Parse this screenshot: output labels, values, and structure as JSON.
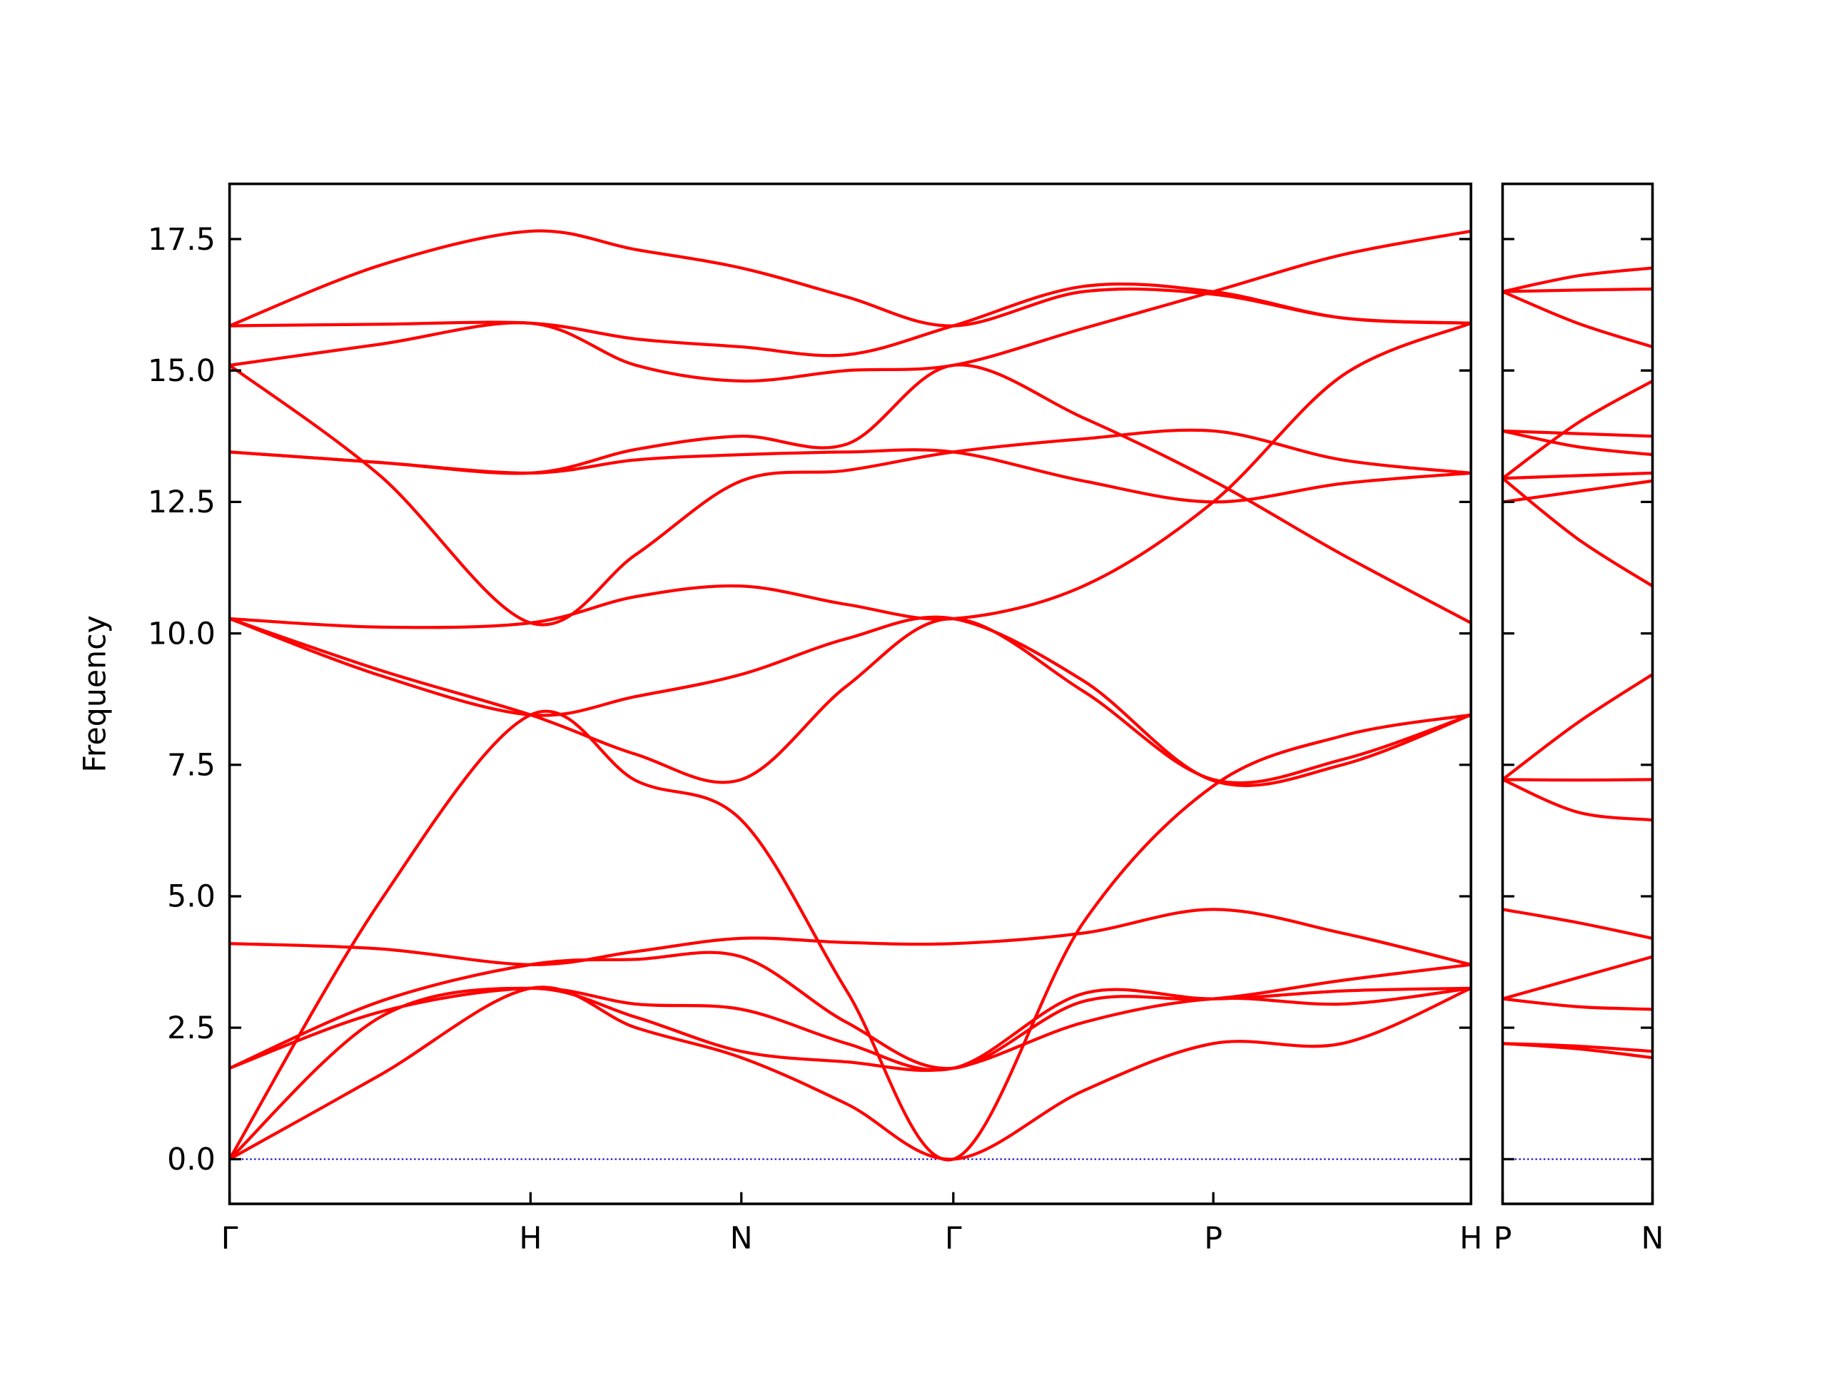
{
  "chart_data": [
    {
      "type": "line",
      "y_label": "Frequency",
      "x": [
        0,
        1.285,
        2.57,
        3.47,
        4.37,
        5.27,
        6.18,
        7.29,
        8.4,
        9.5,
        10.6
      ],
      "xlim": [
        0,
        10.6
      ],
      "xticks": [
        {
          "value": 0,
          "label": "Γ"
        },
        {
          "value": 2.57,
          "label": "H"
        },
        {
          "value": 4.37,
          "label": "N"
        },
        {
          "value": 6.18,
          "label": "Γ"
        },
        {
          "value": 8.4,
          "label": "P"
        },
        {
          "value": 10.6,
          "label": "H"
        }
      ],
      "ylim": [
        -0.85,
        18.55
      ],
      "yticks": [
        {
          "value": 0,
          "label": "0.0"
        },
        2.5,
        {
          "value": 5,
          "label": "5.0"
        },
        7.5,
        {
          "value": 10,
          "label": "10.0"
        },
        12.5,
        {
          "value": 15,
          "label": "15.0"
        },
        17.5
      ],
      "reference_line": {
        "y": 0,
        "color": "#0000cc"
      },
      "series": [
        {
          "color": "#ff0000",
          "values": [
            0,
            1.6,
            3.25,
            2.5,
            1.93,
            1.05,
            0,
            1.3,
            2.2,
            2.2,
            3.25
          ]
        },
        {
          "color": "#ff0000",
          "values": [
            0,
            2.7,
            3.25,
            2.7,
            2.05,
            1.85,
            1.73,
            2.6,
            3.05,
            2.95,
            3.25
          ]
        },
        {
          "color": "#ff0000",
          "values": [
            1.73,
            2.8,
            3.25,
            2.95,
            2.85,
            2.2,
            1.73,
            3.15,
            3.05,
            3.2,
            3.25
          ]
        },
        {
          "color": "#ff0000",
          "values": [
            1.73,
            3.0,
            3.7,
            3.8,
            3.85,
            2.6,
            1.73,
            3.0,
            3.05,
            3.4,
            3.7
          ]
        },
        {
          "color": "#ff0000",
          "values": [
            4.1,
            4.0,
            3.7,
            3.95,
            4.2,
            4.12,
            4.1,
            4.3,
            4.75,
            4.3,
            3.7
          ]
        },
        {
          "color": "#ff0000",
          "values": [
            0,
            4.9,
            8.45,
            7.2,
            6.45,
            3.2,
            0,
            4.5,
            7.1,
            8.05,
            8.45
          ]
        },
        {
          "color": "#ff0000",
          "values": [
            10.28,
            9.3,
            8.45,
            7.7,
            7.22,
            9.0,
            10.28,
            8.9,
            7.22,
            7.6,
            8.45
          ]
        },
        {
          "color": "#ff0000",
          "values": [
            10.28,
            9.2,
            8.45,
            8.8,
            9.22,
            9.9,
            10.28,
            9.1,
            7.2,
            7.5,
            8.45
          ]
        },
        {
          "color": "#ff0000",
          "values": [
            10.28,
            10.12,
            10.2,
            10.7,
            10.9,
            10.55,
            10.28,
            10.9,
            12.5,
            14.9,
            15.9
          ]
        },
        {
          "color": "#ff0000",
          "values": [
            15.1,
            13.0,
            10.2,
            11.5,
            12.9,
            13.1,
            13.45,
            13.7,
            13.85,
            13.3,
            13.05
          ]
        },
        {
          "color": "#ff0000",
          "values": [
            13.45,
            13.25,
            13.05,
            13.3,
            13.4,
            13.45,
            13.45,
            12.9,
            12.5,
            12.85,
            13.05
          ]
        },
        {
          "color": "#ff0000",
          "values": [
            13.45,
            13.25,
            13.05,
            13.5,
            13.75,
            13.6,
            15.1,
            14.1,
            12.9,
            11.5,
            10.2
          ]
        },
        {
          "color": "#ff0000",
          "values": [
            15.1,
            15.5,
            15.9,
            15.1,
            14.8,
            15.0,
            15.1,
            15.8,
            16.5,
            17.2,
            17.65
          ]
        },
        {
          "color": "#ff0000",
          "values": [
            15.85,
            15.88,
            15.9,
            15.6,
            15.45,
            15.3,
            15.85,
            16.6,
            16.5,
            16.0,
            15.9
          ]
        },
        {
          "color": "#ff0000",
          "values": [
            15.85,
            17.0,
            17.65,
            17.3,
            16.95,
            16.4,
            15.85,
            16.5,
            16.45,
            16.0,
            15.9
          ]
        }
      ]
    },
    {
      "type": "line",
      "x": [
        0,
        0.64,
        1.28
      ],
      "xlim": [
        0,
        1.28
      ],
      "xticks": [
        {
          "value": 0,
          "label": "P"
        },
        {
          "value": 1.28,
          "label": "N"
        }
      ],
      "ylim": [
        -0.85,
        18.55
      ],
      "yticks": [
        0,
        2.5,
        5,
        7.5,
        10,
        12.5,
        15,
        17.5
      ],
      "reference_line": {
        "y": 0,
        "color": "#0000cc"
      },
      "series": [
        {
          "color": "#ff0000",
          "values": [
            2.2,
            2.1,
            1.93
          ]
        },
        {
          "color": "#ff0000",
          "values": [
            2.2,
            2.15,
            2.05
          ]
        },
        {
          "color": "#ff0000",
          "values": [
            3.05,
            2.9,
            2.85
          ]
        },
        {
          "color": "#ff0000",
          "values": [
            3.05,
            3.45,
            3.85
          ]
        },
        {
          "color": "#ff0000",
          "values": [
            4.75,
            4.5,
            4.2
          ]
        },
        {
          "color": "#ff0000",
          "values": [
            7.22,
            6.6,
            6.45
          ]
        },
        {
          "color": "#ff0000",
          "values": [
            7.22,
            7.21,
            7.22
          ]
        },
        {
          "color": "#ff0000",
          "values": [
            7.22,
            8.3,
            9.22
          ]
        },
        {
          "color": "#ff0000",
          "values": [
            12.95,
            11.8,
            10.9
          ]
        },
        {
          "color": "#ff0000",
          "values": [
            12.5,
            12.7,
            12.9
          ]
        },
        {
          "color": "#ff0000",
          "values": [
            12.95,
            13.0,
            13.05
          ]
        },
        {
          "color": "#ff0000",
          "values": [
            12.95,
            14.0,
            14.8
          ]
        },
        {
          "color": "#ff0000",
          "values": [
            13.85,
            13.55,
            13.4
          ]
        },
        {
          "color": "#ff0000",
          "values": [
            13.85,
            13.8,
            13.75
          ]
        },
        {
          "color": "#ff0000",
          "values": [
            16.5,
            15.9,
            15.45
          ]
        },
        {
          "color": "#ff0000",
          "values": [
            16.5,
            16.53,
            16.55
          ]
        },
        {
          "color": "#ff0000",
          "values": [
            16.5,
            16.8,
            16.95
          ]
        }
      ]
    }
  ]
}
